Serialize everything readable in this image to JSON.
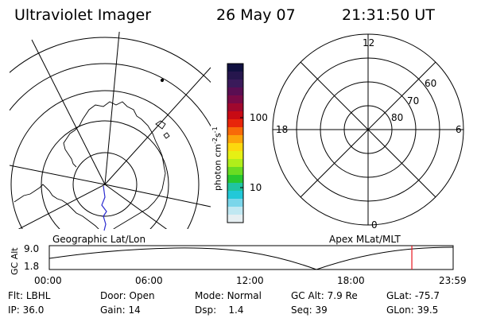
{
  "header": {
    "instrument": "Ultraviolet Imager",
    "date": "26 May 07",
    "time": "21:31:50 UT"
  },
  "colorbar": {
    "label": "photon cm",
    "label_sup1": "-2",
    "label_mid": "s",
    "label_sup2": "-1",
    "ticks": [
      "100",
      "10"
    ],
    "colors": [
      "#101040",
      "#26164d",
      "#3a1a5a",
      "#5a0e52",
      "#7a0a46",
      "#a0082e",
      "#c80a14",
      "#e8250a",
      "#f86a08",
      "#fca40a",
      "#fcd80e",
      "#e6f014",
      "#b0ee1a",
      "#6adc22",
      "#28c82e",
      "#20c4a0",
      "#22c8d8",
      "#7ad6ea",
      "#c0e8f2",
      "#e6eff2"
    ]
  },
  "geo_map": {
    "caption": "Geographic Lat/Lon"
  },
  "apex_map": {
    "caption": "Apex MLat/MLT",
    "mlt_labels": {
      "top": "12",
      "left": "18",
      "right": "6",
      "bottom": "0"
    },
    "mlat_labels": [
      "80",
      "70",
      "60"
    ]
  },
  "altitude_plot": {
    "ylabel": "GC Alt",
    "yticks": [
      "9.0",
      "1.8"
    ],
    "xticks": [
      "00:00",
      "06:00",
      "12:00",
      "18:00",
      "23:59"
    ],
    "current_time_marker": "21:31:50",
    "marker_color": "#e8141e"
  },
  "status": {
    "flt_label": "Flt:",
    "flt_value": "LBHL",
    "ip_label": "IP:",
    "ip_value": "36.0",
    "door_label": "Door:",
    "door_value": "Open",
    "gain_label": "Gain:",
    "gain_value": "14",
    "mode_label": "Mode:",
    "mode_value": "Normal",
    "dsp_label": "Dsp:",
    "dsp_value": "1.4",
    "gcalt_label": "GC Alt:",
    "gcalt_value": "7.9 Re",
    "seq_label": "Seq:",
    "seq_value": "39",
    "glat_label": "GLat:",
    "glat_value": "-75.7",
    "glon_label": "GLon:",
    "glon_value": "39.5"
  }
}
